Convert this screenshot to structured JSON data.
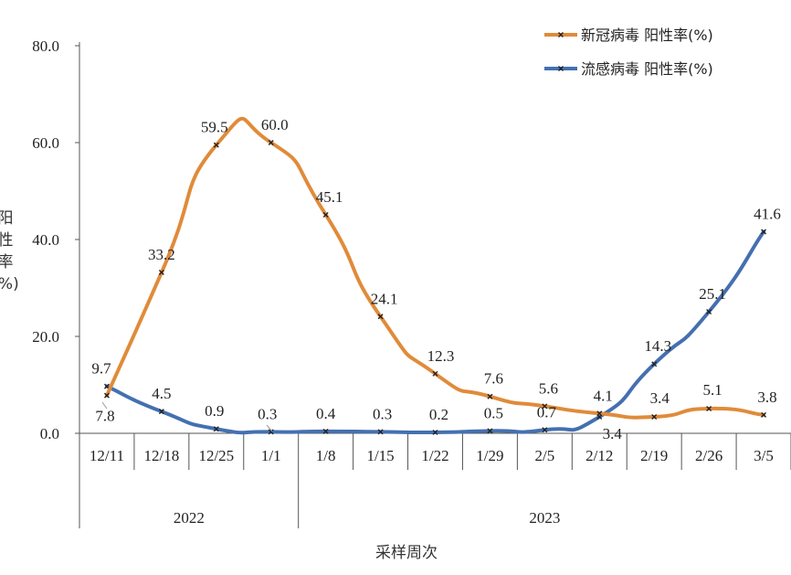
{
  "chart_data": {
    "type": "line",
    "categories": [
      "12/11",
      "12/18",
      "12/25",
      "1/1",
      "1/8",
      "1/15",
      "1/22",
      "1/29",
      "2/5",
      "2/12",
      "2/19",
      "2/26",
      "3/5"
    ],
    "year_groups": [
      {
        "label": "2022",
        "span": [
          0,
          3
        ]
      },
      {
        "label": "2023",
        "span": [
          4,
          12
        ]
      }
    ],
    "series": [
      {
        "name": "新冠病毒 阳性率(%)",
        "color": "#E08B3A",
        "values": [
          7.8,
          33.2,
          59.5,
          60.0,
          45.1,
          24.1,
          12.3,
          7.6,
          5.6,
          4.1,
          3.4,
          5.1,
          3.8
        ],
        "labels": [
          "7.8",
          "33.2",
          "59.5",
          "60.0",
          "45.1",
          "24.1",
          "12.3",
          "7.6",
          "5.6",
          "4.1",
          "3.4",
          "5.1",
          "3.8"
        ]
      },
      {
        "name": "流感病毒 阳性率(%)",
        "color": "#4470B0",
        "values": [
          9.7,
          4.5,
          0.9,
          0.3,
          0.4,
          0.3,
          0.2,
          0.5,
          0.7,
          3.4,
          14.3,
          25.1,
          41.6
        ],
        "labels": [
          "9.7",
          "4.5",
          "0.9",
          "0.3",
          "0.4",
          "0.3",
          "0.2",
          "0.5",
          "0.7",
          "3.4",
          "14.3",
          "25.1",
          "41.6"
        ]
      }
    ],
    "y_ticks": [
      "0.0",
      "20.0",
      "40.0",
      "60.0",
      "80.0"
    ],
    "ylim": [
      0,
      80
    ],
    "ylabel": "阳性率(%)",
    "xlabel": "采样周次",
    "legend": "top-right",
    "grid": false
  }
}
